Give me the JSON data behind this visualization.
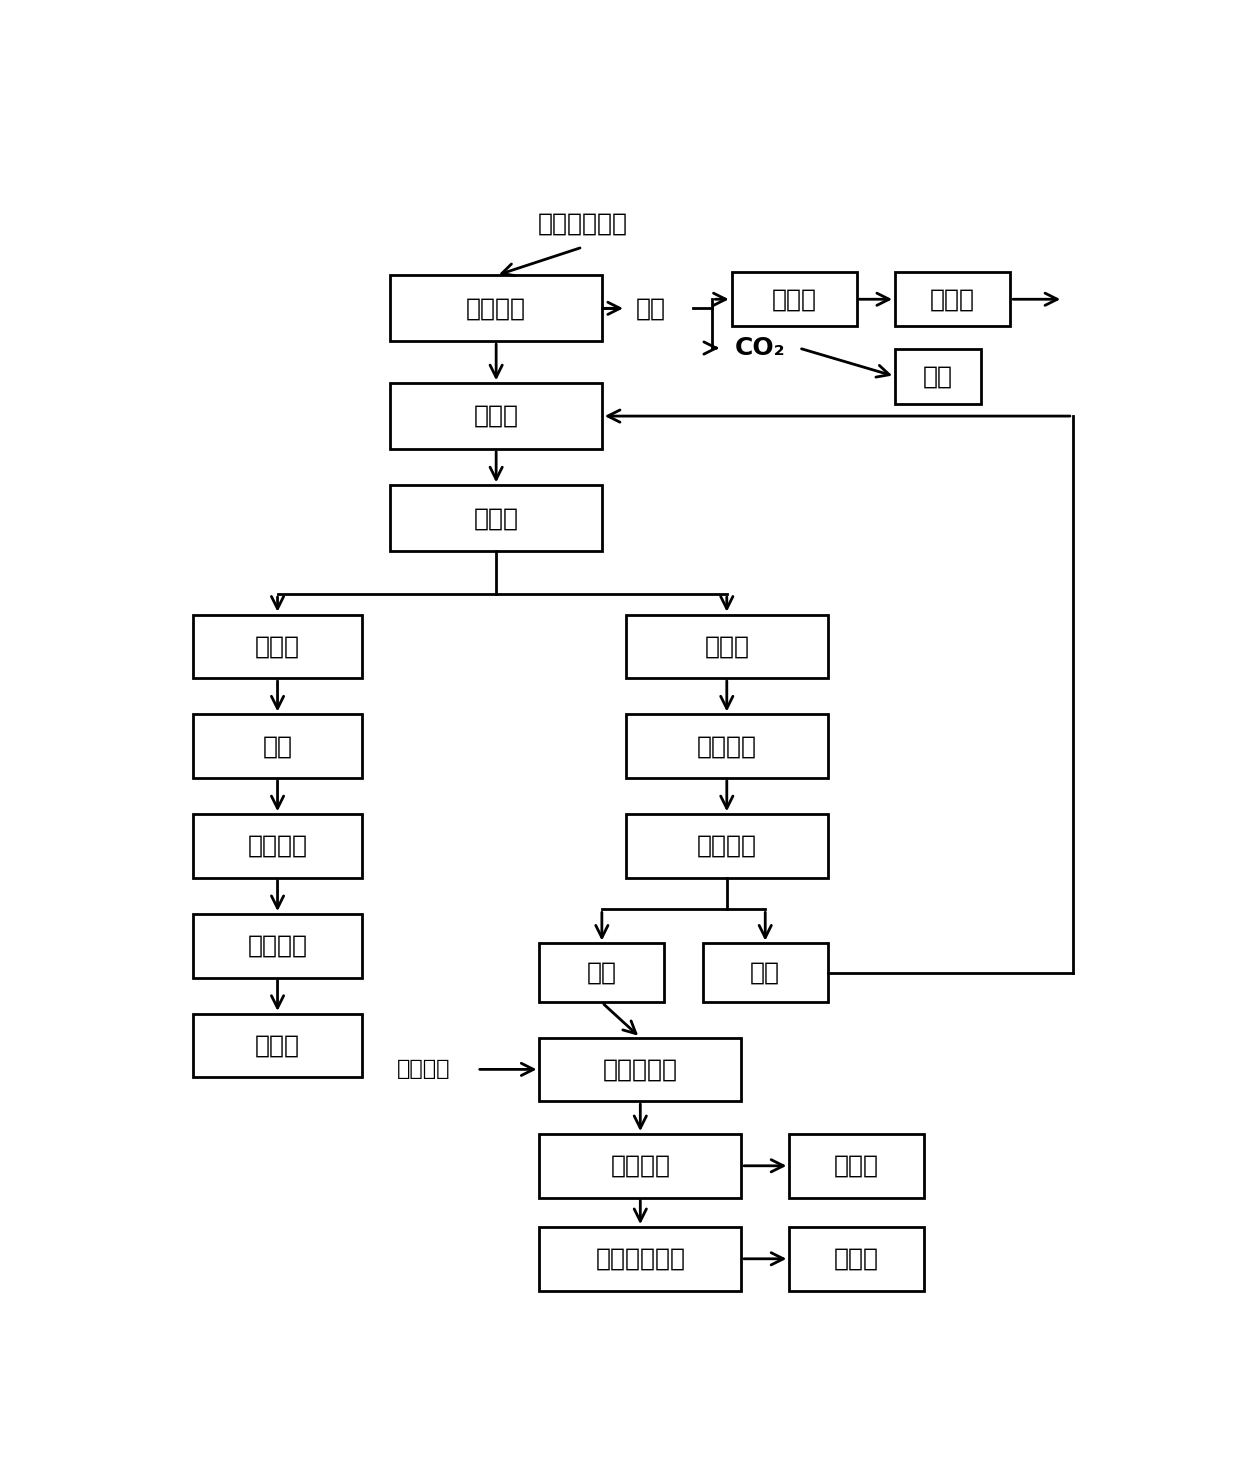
{
  "bg_color": "#ffffff",
  "box_edge_color": "#000000",
  "box_face_color": "#ffffff",
  "text_color": "#000000",
  "font_size": 18,
  "small_font_size": 16,
  "lw": 2.0,
  "figsize": [
    12.4,
    14.73
  ],
  "dpi": 100,
  "boxes": {
    "废钼镍催化剂": [
      0.335,
      0.938,
      0.22,
      0.042
    ],
    "低温焙烧": [
      0.245,
      0.855,
      0.22,
      0.058
    ],
    "碱焙烧": [
      0.245,
      0.76,
      0.22,
      0.058
    ],
    "水浸出": [
      0.245,
      0.67,
      0.22,
      0.058
    ],
    "浸出渣": [
      0.04,
      0.558,
      0.175,
      0.056
    ],
    "酸溶": [
      0.04,
      0.47,
      0.175,
      0.056
    ],
    "蒸发结晶": [
      0.04,
      0.382,
      0.175,
      0.056
    ],
    "固液分离_L": [
      0.04,
      0.294,
      0.175,
      0.056
    ],
    "硫酸镍": [
      0.04,
      0.206,
      0.175,
      0.056
    ],
    "浸出液": [
      0.49,
      0.558,
      0.21,
      0.056
    ],
    "净化除杂": [
      0.49,
      0.47,
      0.21,
      0.056
    ],
    "固液分离_M": [
      0.49,
      0.382,
      0.21,
      0.056
    ],
    "滤液": [
      0.4,
      0.272,
      0.13,
      0.052
    ],
    "滤渣": [
      0.57,
      0.272,
      0.13,
      0.052
    ],
    "钼铝分离": [
      0.4,
      0.185,
      0.21,
      0.056
    ],
    "固液分离_B": [
      0.4,
      0.1,
      0.21,
      0.056
    ],
    "精制含铝溶液": [
      0.4,
      0.018,
      0.21,
      0.056
    ],
    "吸收塔": [
      0.6,
      0.868,
      0.13,
      0.048
    ],
    "亚硫酸": [
      0.77,
      0.868,
      0.12,
      0.048
    ],
    "排空": [
      0.77,
      0.8,
      0.09,
      0.048
    ],
    "钼酸钡": [
      0.66,
      0.1,
      0.14,
      0.056
    ],
    "氧化铝": [
      0.66,
      0.018,
      0.14,
      0.056
    ]
  },
  "no_box": [
    "废钼镍催化剂"
  ],
  "labels": {
    "废钼镍催化剂": "废钼镍催化剂",
    "低温焙烧": "低温焙烧",
    "碱焙烧": "碱焙烧",
    "水浸出": "水浸出",
    "浸出渣": "浸出渣",
    "酸溶": "酸溶",
    "蒸发结晶": "蒸发结晶",
    "固液分离_L": "固液分离",
    "硫酸镍": "硫酸镍",
    "浸出液": "浸出液",
    "净化除杂": "净化除杂",
    "固液分离_M": "固液分离",
    "滤液": "滤液",
    "滤渣": "滤渣",
    "钼铝分离": "钼、铝分离",
    "固液分离_B": "固液分离",
    "精制含铝溶液": "精制含铝溶液",
    "吸收塔": "吸收塔",
    "亚硫酸": "亚硫酸",
    "排空": "排空",
    "钼酸钡": "钼酸钡",
    "氧化铝": "氧化铝"
  }
}
